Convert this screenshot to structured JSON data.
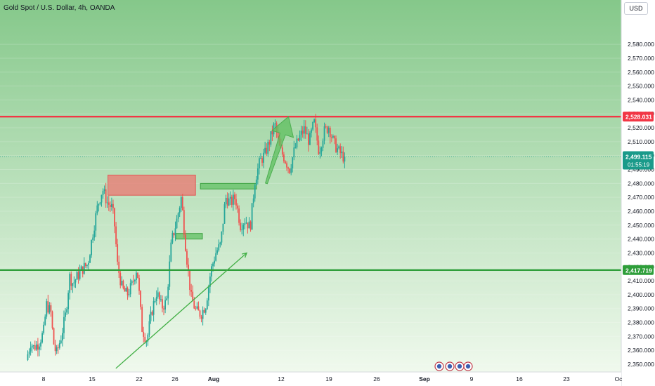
{
  "header": {
    "symbol_title": "Gold Spot / U.S. Dollar, 4h, OANDA",
    "currency": "USD"
  },
  "colors": {
    "up": "#26a69a",
    "down": "#ef5350",
    "resistance": "#f23645",
    "support": "#2e9e3a",
    "current": "#1a9a8a",
    "bg_top": "#85c88a",
    "bg_bottom": "#f4fbf1"
  },
  "chart_data": {
    "type": "candlestick",
    "y_axis": {
      "ticks": [
        "2,350.000",
        "2,360.000",
        "2,370.000",
        "2,380.000",
        "2,390.000",
        "2,400.000",
        "2,410.000",
        "2,420.000",
        "2,430.000",
        "2,440.000",
        "2,450.000",
        "2,460.000",
        "2,470.000",
        "2,480.000",
        "2,490.000",
        "2,500.000",
        "2,510.000",
        "2,520.000",
        "2,530.000",
        "2,540.000",
        "2,550.000",
        "2,560.000",
        "2,570.000",
        "2,580.000"
      ],
      "range": [
        2343,
        2590
      ]
    },
    "x_axis": {
      "ticks": [
        "8",
        "15",
        "22",
        "26",
        "Aug",
        "12",
        "19",
        "26",
        "Sep",
        "9",
        "16",
        "23",
        "Oc"
      ]
    },
    "price_levels": [
      {
        "name": "resistance",
        "value": 2528.031,
        "label": "2,528.031"
      },
      {
        "name": "support",
        "value": 2417.719,
        "label": "2,417.719"
      }
    ],
    "current_price": {
      "value": 2499.115,
      "label": "2,499.115",
      "countdown": "01:55:19"
    },
    "zones": [
      {
        "name": "supply-zone",
        "from_day": 17.8,
        "to_day": 35.6,
        "low": 2471.5,
        "high": 2486.0
      },
      {
        "name": "demand-zone-upper",
        "from_day": 36.6,
        "to_day": 48.0,
        "low": 2476.0,
        "high": 2480.0
      },
      {
        "name": "demand-zone-lower",
        "from_day": 31.6,
        "to_day": 37.0,
        "low": 2440.0,
        "high": 2444.0
      }
    ],
    "trendline": {
      "from_day": 19.4,
      "from_value": 2347,
      "to_day": 46.0,
      "to_value": 2430
    },
    "projection_arrow": {
      "from_day": 50.0,
      "from_value": 2480,
      "to_day": 54.5,
      "to_value": 2528
    },
    "ohlc_path": [
      [
        1.5,
        2353
      ],
      [
        2.4,
        2366
      ],
      [
        3.0,
        2362
      ],
      [
        4.0,
        2365
      ],
      [
        5.0,
        2373
      ],
      [
        5.6,
        2393
      ],
      [
        6.5,
        2387
      ],
      [
        7.0,
        2366
      ],
      [
        7.6,
        2357
      ],
      [
        8.6,
        2370
      ],
      [
        9.5,
        2386
      ],
      [
        10.3,
        2413
      ],
      [
        11.0,
        2408
      ],
      [
        12.0,
        2414
      ],
      [
        13.0,
        2419
      ],
      [
        14.0,
        2422
      ],
      [
        15.0,
        2444
      ],
      [
        16.0,
        2464
      ],
      [
        17.0,
        2476
      ],
      [
        18.0,
        2466
      ],
      [
        19.0,
        2462
      ],
      [
        19.5,
        2448
      ],
      [
        20.0,
        2422
      ],
      [
        21.0,
        2404
      ],
      [
        22.0,
        2400
      ],
      [
        23.0,
        2407
      ],
      [
        24.0,
        2420
      ],
      [
        25.0,
        2376
      ],
      [
        26.0,
        2367
      ],
      [
        27.0,
        2388
      ],
      [
        28.0,
        2402
      ],
      [
        29.0,
        2391
      ],
      [
        30.0,
        2395
      ],
      [
        31.0,
        2438
      ],
      [
        32.0,
        2452
      ],
      [
        33.0,
        2470
      ],
      [
        34.0,
        2430
      ],
      [
        35.0,
        2398
      ],
      [
        36.0,
        2388
      ],
      [
        37.0,
        2386
      ],
      [
        38.0,
        2393
      ],
      [
        39.0,
        2417
      ],
      [
        40.0,
        2430
      ],
      [
        41.0,
        2436
      ],
      [
        42.0,
        2470
      ],
      [
        43.0,
        2466
      ],
      [
        44.0,
        2470
      ],
      [
        45.0,
        2450
      ],
      [
        46.0,
        2454
      ],
      [
        47.0,
        2448
      ],
      [
        48.0,
        2483
      ],
      [
        49.0,
        2496
      ],
      [
        50.0,
        2501
      ],
      [
        51.0,
        2511
      ],
      [
        52.0,
        2523
      ],
      [
        53.0,
        2505
      ],
      [
        54.0,
        2498
      ],
      [
        55.0,
        2490
      ],
      [
        56.0,
        2504
      ],
      [
        57.0,
        2513
      ],
      [
        58.0,
        2519
      ],
      [
        59.0,
        2510
      ],
      [
        60.0,
        2524
      ],
      [
        61.0,
        2503
      ],
      [
        62.0,
        2517
      ],
      [
        63.0,
        2521
      ],
      [
        64.0,
        2509
      ],
      [
        65.0,
        2503
      ],
      [
        66.0,
        2499
      ]
    ]
  }
}
